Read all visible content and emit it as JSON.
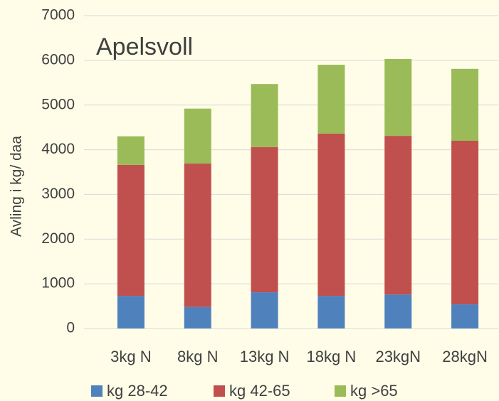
{
  "chart_data": {
    "type": "stacked_bar",
    "title": "Apelsvoll",
    "y_label": "Avling i kg/ daa",
    "categories": [
      "3kg N",
      "8kg N",
      "13kg N",
      "18kg N",
      "23kgN",
      "28kgN"
    ],
    "series": [
      {
        "name": "kg 28-42",
        "color": "#4f81bd",
        "values": [
          730,
          480,
          810,
          730,
          760,
          540
        ]
      },
      {
        "name": "kg 42-65",
        "color": "#c0504d",
        "values": [
          2930,
          3210,
          3250,
          3630,
          3550,
          3660
        ]
      },
      {
        "name": "kg >65",
        "color": "#9bbb59",
        "values": [
          640,
          1230,
          1410,
          1540,
          1720,
          1610
        ]
      }
    ],
    "ylim": [
      0,
      7000
    ],
    "yticks": [
      0,
      1000,
      2000,
      3000,
      4000,
      5000,
      6000,
      7000
    ],
    "grid": true,
    "legend": "bottom"
  }
}
